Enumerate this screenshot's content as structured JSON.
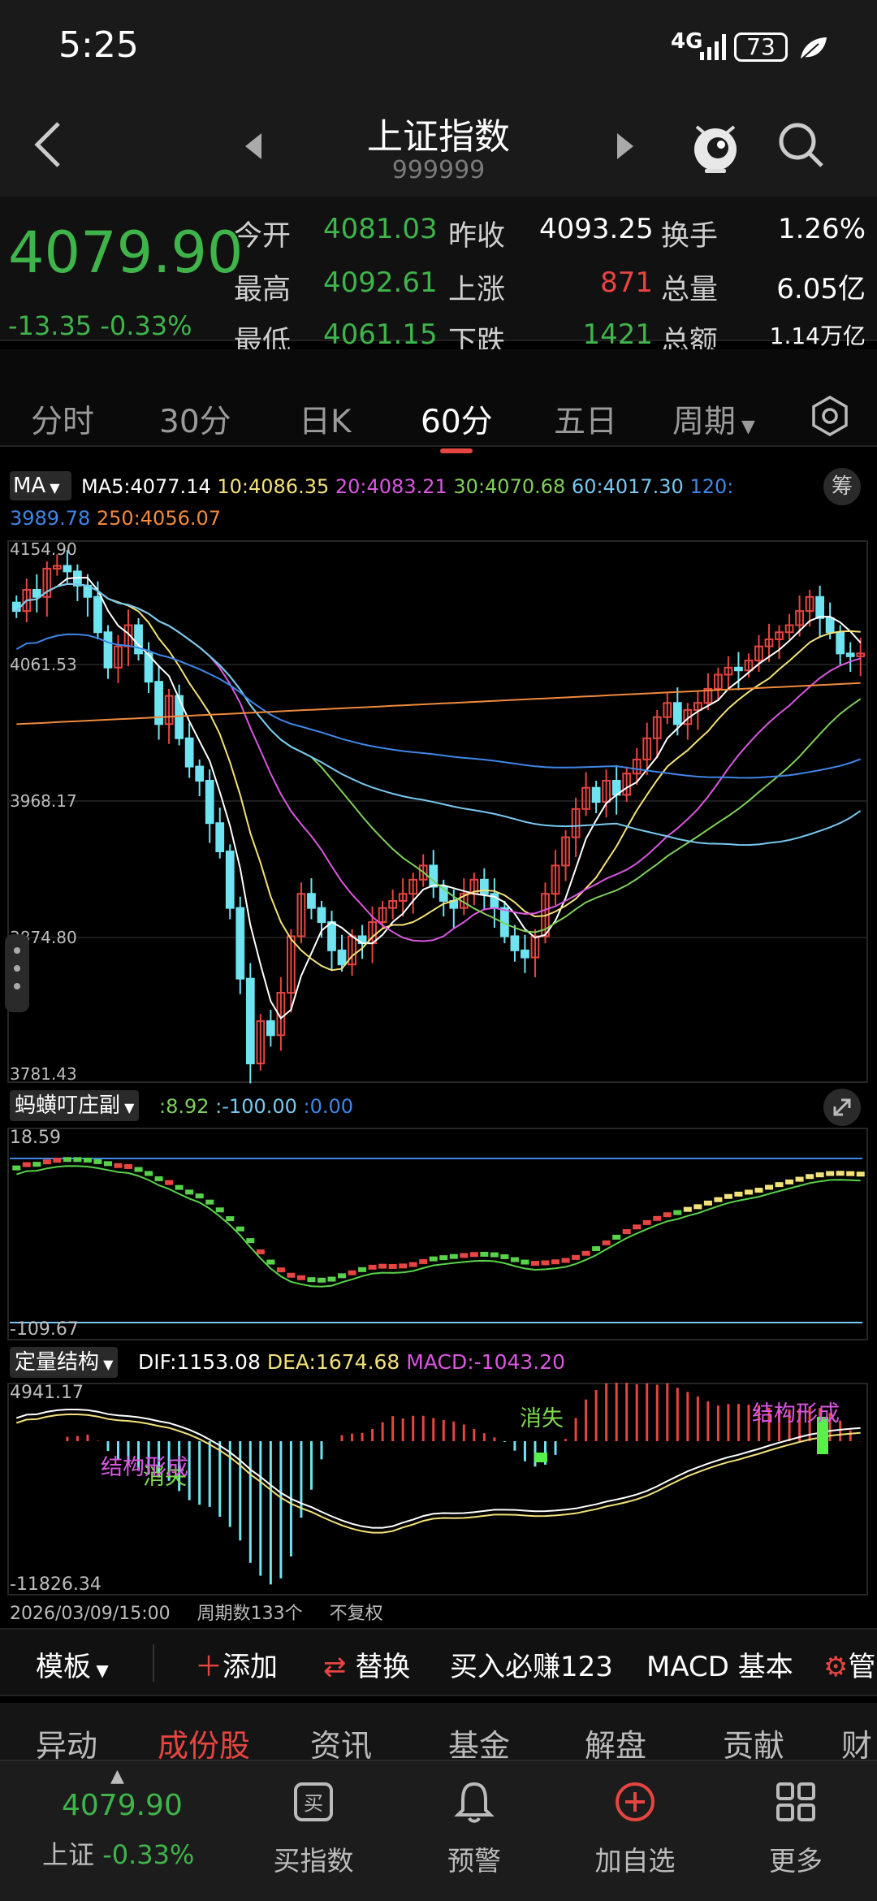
{
  "status": {
    "time": "5:25",
    "network": "4G",
    "battery": "73"
  },
  "header": {
    "title": "上证指数",
    "code": "999999"
  },
  "quote": {
    "price": "4079.90",
    "change": "-13.35",
    "change_pct": "-0.33%",
    "rows": [
      [
        {
          "label": "今开",
          "value": "4081.03"
        },
        {
          "label": "昨收",
          "value": "4093.25"
        },
        {
          "label": "换手",
          "value": "1.26%"
        }
      ],
      [
        {
          "label": "最高",
          "value": "4092.61"
        },
        {
          "label": "上涨",
          "value": "871"
        },
        {
          "label": "总量",
          "value": "6.05亿"
        }
      ],
      [
        {
          "label": "最低",
          "value": "4061.15"
        },
        {
          "label": "下跌",
          "value": "1421"
        },
        {
          "label": "总额",
          "value": "1.14万亿"
        }
      ]
    ]
  },
  "tabs": [
    "分时",
    "30分",
    "日K",
    "60分",
    "五日",
    "周期"
  ],
  "active_tab": "60分",
  "ma_legend": {
    "select": "MA",
    "items": [
      {
        "text": "MA5:4077.14",
        "color": "#ffffff"
      },
      {
        "text": "10:4086.35",
        "color": "#f3e27a"
      },
      {
        "text": "20:4083.21",
        "color": "#d957e0"
      },
      {
        "text": "30:4070.68",
        "color": "#7fcf5a"
      },
      {
        "text": "60:4017.30",
        "color": "#78c8f0"
      },
      {
        "text": "120:",
        "color": "#3f86e8"
      },
      {
        "text": "3989.78",
        "color": "#3f86e8"
      },
      {
        "text": "250:4056.07",
        "color": "#f08a3c"
      }
    ],
    "chip_label": "筹"
  },
  "chart_data": [
    {
      "type": "candlestick",
      "title": "",
      "y_ticks": [
        "4154.90",
        "4061.53",
        "3968.17",
        "3874.80",
        "3781.43"
      ],
      "ylim": [
        3781.43,
        4154.9
      ],
      "close_path": [
        4110,
        4125,
        4120,
        4140,
        4142,
        4138,
        4128,
        4120,
        4095,
        4070,
        4085,
        4100,
        4080,
        4060,
        4030,
        4050,
        4020,
        4000,
        3990,
        3960,
        3940,
        3900,
        3850,
        3790,
        3820,
        3810,
        3840,
        3880,
        3910,
        3900,
        3890,
        3870,
        3860,
        3880,
        3875,
        3890,
        3900,
        3905,
        3910,
        3920,
        3930,
        3915,
        3905,
        3900,
        3910,
        3920,
        3910,
        3900,
        3880,
        3870,
        3865,
        3880,
        3910,
        3930,
        3950,
        3970,
        3985,
        3975,
        3990,
        3980,
        3995,
        4005,
        4020,
        4035,
        4045,
        4030,
        4040,
        4045,
        4055,
        4065,
        4070,
        4068,
        4075,
        4085,
        4090,
        4095,
        4100,
        4110,
        4120,
        4105,
        4095,
        4080,
        4078,
        4080
      ]
    },
    {
      "type": "line",
      "title": "蚂蟥叮庄副",
      "legend": [
        ":8.92",
        ":-100.00",
        ":0.00"
      ],
      "y_ticks": [
        "18.59",
        "-109.67"
      ]
    },
    {
      "type": "bar",
      "title": "定量结构",
      "legend": [
        {
          "text": "DIF:1153.08",
          "color": "#ffffff"
        },
        {
          "text": "DEA:1674.68",
          "color": "#f3e27a"
        },
        {
          "text": "MACD:-1043.20",
          "color": "#d957e0"
        }
      ],
      "y_ticks": [
        "4941.17",
        "-11826.34"
      ],
      "annotations": [
        "消失",
        "结构形成",
        "消失",
        "结构形成"
      ]
    }
  ],
  "chart_footer": {
    "date": "2026/03/09/15:00",
    "periods": "周期数133个",
    "adjust": "不复权"
  },
  "toolbar": [
    "模板",
    "添加",
    "替换",
    "买入必赚123",
    "MACD 基本",
    "管"
  ],
  "section_tabs": [
    "异动",
    "成份股",
    "资讯",
    "基金",
    "解盘",
    "贡献",
    "财"
  ],
  "bottom_nav": {
    "mini_price": "4079.90",
    "mini_name": "上证",
    "mini_pct": "-0.33%",
    "items": [
      "买指数",
      "预警",
      "加自选",
      "更多"
    ]
  }
}
